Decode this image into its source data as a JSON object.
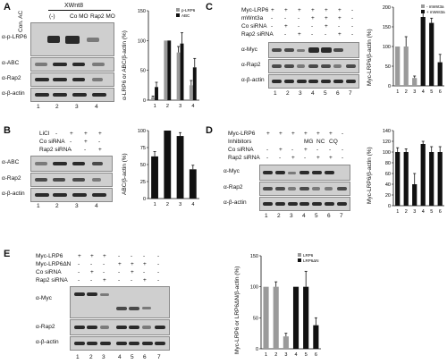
{
  "panels": {
    "A": {
      "letter": "A",
      "header_group": "XWnt8",
      "lanes": [
        "Con. AC",
        "(-)",
        "Co MO",
        "Rap2 MO"
      ],
      "blot_labels": [
        "α-p-LRP6",
        "α-ABC",
        "α-Rap2",
        "α-β-actin"
      ],
      "lane_numbers": [
        "1",
        "2",
        "3",
        "4"
      ],
      "chart_ylabel": "α-LRP6 or ABC/β-actin (%)"
    },
    "B": {
      "letter": "B",
      "conditions": [
        {
          "label": "LiCl",
          "marks": [
            "-",
            "+",
            "+",
            "+"
          ]
        },
        {
          "label": "Co siRNA",
          "marks": [
            "-",
            "-",
            "+",
            "-"
          ]
        },
        {
          "label": "Rap2 siRNA",
          "marks": [
            "-",
            "-",
            "-",
            "+"
          ]
        }
      ],
      "blot_labels": [
        "α-ABC",
        "α-Rap2",
        "α-β-actin"
      ],
      "lane_numbers": [
        "1",
        "2",
        "3",
        "4"
      ],
      "chart_ylabel": "ABC/β-actin (%)"
    },
    "C": {
      "letter": "C",
      "conditions": [
        {
          "label": "Myc-LRP6",
          "marks": [
            "+",
            "+",
            "+",
            "+",
            "+",
            "+",
            "-"
          ]
        },
        {
          "label": "mWnt3a",
          "marks": [
            "-",
            "-",
            "-",
            "+",
            "+",
            "+",
            "-"
          ]
        },
        {
          "label": "Co siRNA",
          "marks": [
            "-",
            "+",
            "-",
            "-",
            "+",
            "-",
            "-"
          ]
        },
        {
          "label": "Rap2 siRNA",
          "marks": [
            "-",
            "-",
            "+",
            "-",
            "-",
            "+",
            "-"
          ]
        }
      ],
      "blot_labels": [
        "α-Myc",
        "α-Rap2",
        "α-β-actin"
      ],
      "lane_numbers": [
        "1",
        "2",
        "3",
        "4",
        "5",
        "6",
        "7"
      ],
      "chart_ylabel": "Myc-LRP6/β-actin (%)",
      "legend": [
        "- mWnt3a",
        "+ mWnt3a"
      ]
    },
    "D": {
      "letter": "D",
      "conditions": [
        {
          "label": "Myc-LRP6",
          "marks": [
            "+",
            "+",
            "+",
            "+",
            "+",
            "+",
            "-"
          ]
        },
        {
          "label": "Inhibitors",
          "marks": [
            "",
            "",
            "",
            "MG",
            "NC",
            "CQ",
            ""
          ]
        },
        {
          "label": "Co siRNA",
          "marks": [
            "-",
            "+",
            "-",
            "+",
            "-",
            "-",
            "-"
          ]
        },
        {
          "label": "Rap2 siRNA",
          "marks": [
            "-",
            "-",
            "+",
            "-",
            "+",
            "+",
            "-"
          ]
        }
      ],
      "blot_labels": [
        "α-Myc",
        "α-Rap2",
        "α-β-actin"
      ],
      "lane_numbers": [
        "1",
        "2",
        "3",
        "4",
        "5",
        "6",
        "7"
      ],
      "chart_ylabel": "Myc-LRP6/β-actin (%)"
    },
    "E": {
      "letter": "E",
      "conditions": [
        {
          "label": "Myc-LRP6",
          "marks": [
            "+",
            "+",
            "+",
            "-",
            "-",
            "-",
            "-"
          ]
        },
        {
          "label": "Myc-LRP6ΔN",
          "marks": [
            "-",
            "-",
            "-",
            "+",
            "+",
            "+",
            "-"
          ]
        },
        {
          "label": "Co siRNA",
          "marks": [
            "-",
            "+",
            "-",
            "-",
            "+",
            "-",
            "-"
          ]
        },
        {
          "label": "Rap2 siRNA",
          "marks": [
            "-",
            "-",
            "+",
            "-",
            "-",
            "+",
            "-"
          ]
        }
      ],
      "blot_labels": [
        "α-Myc",
        "α-Rap2",
        "α-β-actin"
      ],
      "lane_numbers": [
        "1",
        "2",
        "3",
        "4",
        "5",
        "6",
        "7"
      ],
      "chart_ylabel": "Myc-LRP6 or LRP6ΔN/β-actin (%)",
      "legend": [
        "LRP6",
        "LRP6ΔN"
      ]
    }
  },
  "chart_data": [
    {
      "panel": "A",
      "type": "bar",
      "categories": [
        "1",
        "2",
        "3",
        "4"
      ],
      "ylim": [
        0,
        150
      ],
      "yticks": [
        0,
        50,
        100,
        150
      ],
      "series": [
        {
          "name": "p-LRP6",
          "color": "#9a9a9a",
          "values": [
            5,
            100,
            80,
            25
          ],
          "errors": [
            2,
            0,
            10,
            8
          ]
        },
        {
          "name": "ABC",
          "color": "#111111",
          "values": [
            22,
            100,
            95,
            55
          ],
          "errors": [
            8,
            0,
            18,
            15
          ]
        }
      ]
    },
    {
      "panel": "B",
      "type": "bar",
      "categories": [
        "1",
        "2",
        "3",
        "4"
      ],
      "ylim": [
        0,
        100
      ],
      "yticks": [
        0,
        25,
        50,
        75,
        100
      ],
      "series": [
        {
          "color": "#111111",
          "values": [
            62,
            100,
            92,
            43
          ],
          "errors": [
            7,
            0,
            5,
            6
          ]
        }
      ]
    },
    {
      "panel": "C",
      "type": "bar",
      "categories": [
        "1",
        "2",
        "3",
        "4",
        "5",
        "6"
      ],
      "ylim": [
        0,
        200
      ],
      "yticks": [
        0,
        50,
        100,
        150,
        200
      ],
      "series": [
        {
          "name": "- mWnt3a",
          "color": "#9a9a9a",
          "values": [
            100,
            100,
            20,
            null,
            null,
            null
          ],
          "errors": [
            0,
            25,
            5,
            null,
            null,
            null
          ]
        },
        {
          "name": "+ mWnt3a",
          "color": "#111111",
          "values": [
            null,
            null,
            null,
            175,
            160,
            60
          ],
          "errors": [
            null,
            null,
            null,
            10,
            12,
            20
          ]
        }
      ]
    },
    {
      "panel": "D",
      "type": "bar",
      "categories": [
        "1",
        "2",
        "3",
        "4",
        "5",
        "6"
      ],
      "ylim": [
        0,
        140
      ],
      "yticks": [
        0,
        20,
        40,
        60,
        80,
        100,
        120,
        140
      ],
      "series": [
        {
          "color": "#111111",
          "values": [
            100,
            100,
            40,
            115,
            100,
            100
          ],
          "errors": [
            8,
            6,
            20,
            5,
            10,
            10
          ]
        }
      ]
    },
    {
      "panel": "E",
      "type": "bar",
      "categories": [
        "1",
        "2",
        "3",
        "4",
        "5",
        "6"
      ],
      "ylim": [
        0,
        150
      ],
      "yticks": [
        0,
        50,
        100,
        150
      ],
      "series": [
        {
          "name": "LRP6",
          "color": "#9a9a9a",
          "values": [
            100,
            100,
            20,
            null,
            null,
            null
          ],
          "errors": [
            0,
            8,
            5,
            null,
            null,
            null
          ]
        },
        {
          "name": "LRP6ΔN",
          "color": "#111111",
          "values": [
            null,
            null,
            null,
            100,
            100,
            38
          ],
          "errors": [
            null,
            null,
            null,
            0,
            25,
            12
          ]
        }
      ]
    }
  ]
}
